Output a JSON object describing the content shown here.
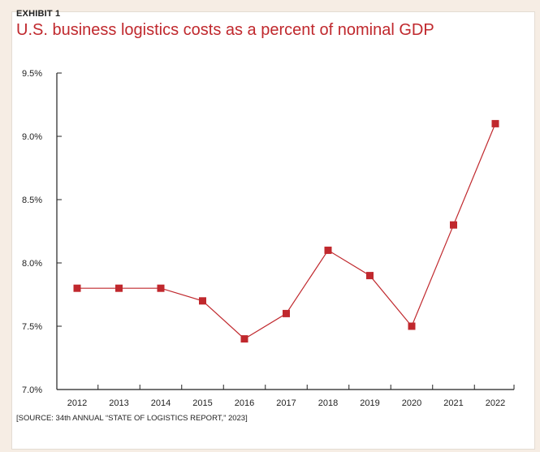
{
  "exhibit_label": "EXHIBIT 1",
  "title": "U.S. business logistics costs as a percent of nominal GDP",
  "source": "[SOURCE: 34th ANNUAL “STATE OF LOGISTICS REPORT,” 2023]",
  "colors": {
    "accent": "#c0282d",
    "series": "#c0282d",
    "axis": "#222222"
  },
  "chart_data": {
    "type": "line",
    "title": "U.S. business logistics costs as a percent of nominal GDP",
    "x": [
      "2012",
      "2013",
      "2014",
      "2015",
      "2016",
      "2017",
      "2018",
      "2019",
      "2020",
      "2021",
      "2022"
    ],
    "series": [
      {
        "values": [
          7.8,
          7.8,
          7.8,
          7.7,
          7.4,
          7.6,
          8.1,
          7.9,
          7.5,
          8.3,
          9.1
        ]
      }
    ],
    "yticks": [
      7.0,
      7.5,
      8.0,
      8.5,
      9.0,
      9.5
    ],
    "ytick_labels": [
      "7.0%",
      "7.5%",
      "8.0%",
      "8.5%",
      "9.0%",
      "9.5%"
    ],
    "ylim": [
      7.0,
      9.5
    ],
    "xlabel": "",
    "ylabel": "",
    "grid": false,
    "marker": "square"
  }
}
